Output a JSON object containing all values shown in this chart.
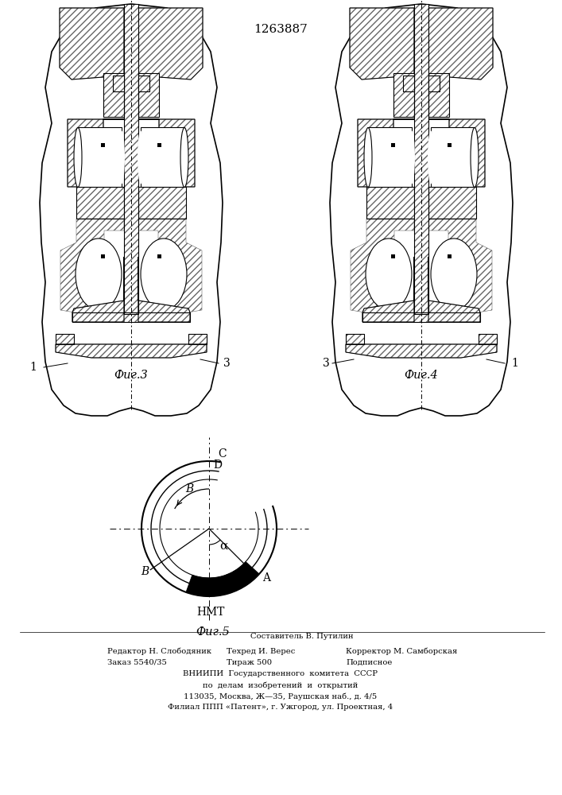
{
  "patent_number": "1263887",
  "fig3_label": "Фиг.3",
  "fig4_label": "Фиг.4",
  "fig5_label": "Фиг.5",
  "label_1": "1",
  "label_3": "3",
  "footer_line1": "Составитель В. Путилин",
  "footer_line2a": "Редактор Н. Слободяник",
  "footer_line2b": "Техред И. Верес",
  "footer_line2c": "Корректор М. Самборская",
  "footer_line3a": "Заказ 5540/35",
  "footer_line3b": "Тираж 500",
  "footer_line3c": "Подписное",
  "footer_line4": "ВНИИПИ  Государственного  комитета  СССР",
  "footer_line5": "по  делам  изобретений  и  открытий",
  "footer_line6": "113035, Москва, Ж—35, Раушская наб., д. 4/5",
  "footer_line7": "Филиал ППП «Патент», г. Ужгород, ул. Проектная, 4",
  "line_color": "#000000",
  "bg_color": "#ffffff"
}
